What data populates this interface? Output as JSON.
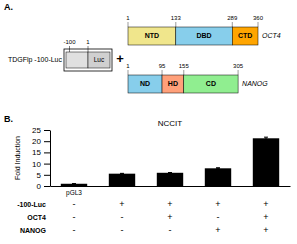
{
  "chart_data": [
    {
      "type": "bar",
      "title": "NCCIT",
      "ylabel": "Fold Induction",
      "annotations": [
        "B."
      ],
      "categories": [
        "pGL3",
        null,
        null,
        null,
        null
      ],
      "values": [
        1.0,
        5.5,
        5.9,
        7.9,
        21.3
      ],
      "errors": [
        0.05,
        0.15,
        0.12,
        0.25,
        0.5
      ],
      "color": "#000000",
      "ylim": [
        0,
        25
      ],
      "yticks": [
        0,
        5,
        10,
        15,
        20,
        25
      ],
      "rows": [
        {
          "name": "-100-Luc",
          "signs": [
            "-",
            "+",
            "+",
            "+",
            "+"
          ]
        },
        {
          "name": "OCT4",
          "signs": [
            "-",
            "-",
            "+",
            "-",
            "+"
          ]
        },
        {
          "name": "NANOG",
          "signs": [
            "-",
            "-",
            "-",
            "+",
            "+"
          ]
        }
      ]
    },
    {
      "type": "domain",
      "title": "A.",
      "annotations": [
        "+"
      ],
      "construct": {
        "name": "TDGFlp -100-Luc",
        "label": "Luc",
        "ticks": [
          -100,
          1
        ]
      },
      "xlim": [
        1,
        360
      ],
      "series": [
        {
          "name": "OCT4",
          "categories": [
            "NTD",
            "DBD",
            "CTD"
          ],
          "starts": [
            1,
            133,
            289
          ],
          "ends": [
            133,
            289,
            360
          ],
          "colors": [
            "#f0e68c",
            "#87ceeb",
            "#ffa500"
          ],
          "ticks": [
            1,
            133,
            289,
            360
          ]
        },
        {
          "name": "NANOG",
          "categories": [
            "ND",
            "HD",
            "CD"
          ],
          "starts": [
            1,
            95,
            155
          ],
          "ends": [
            95,
            155,
            305
          ],
          "colors": [
            "#87ceeb",
            "#ffa07a",
            "#90ee90"
          ],
          "ticks": [
            1,
            95,
            155,
            305
          ]
        }
      ]
    }
  ]
}
